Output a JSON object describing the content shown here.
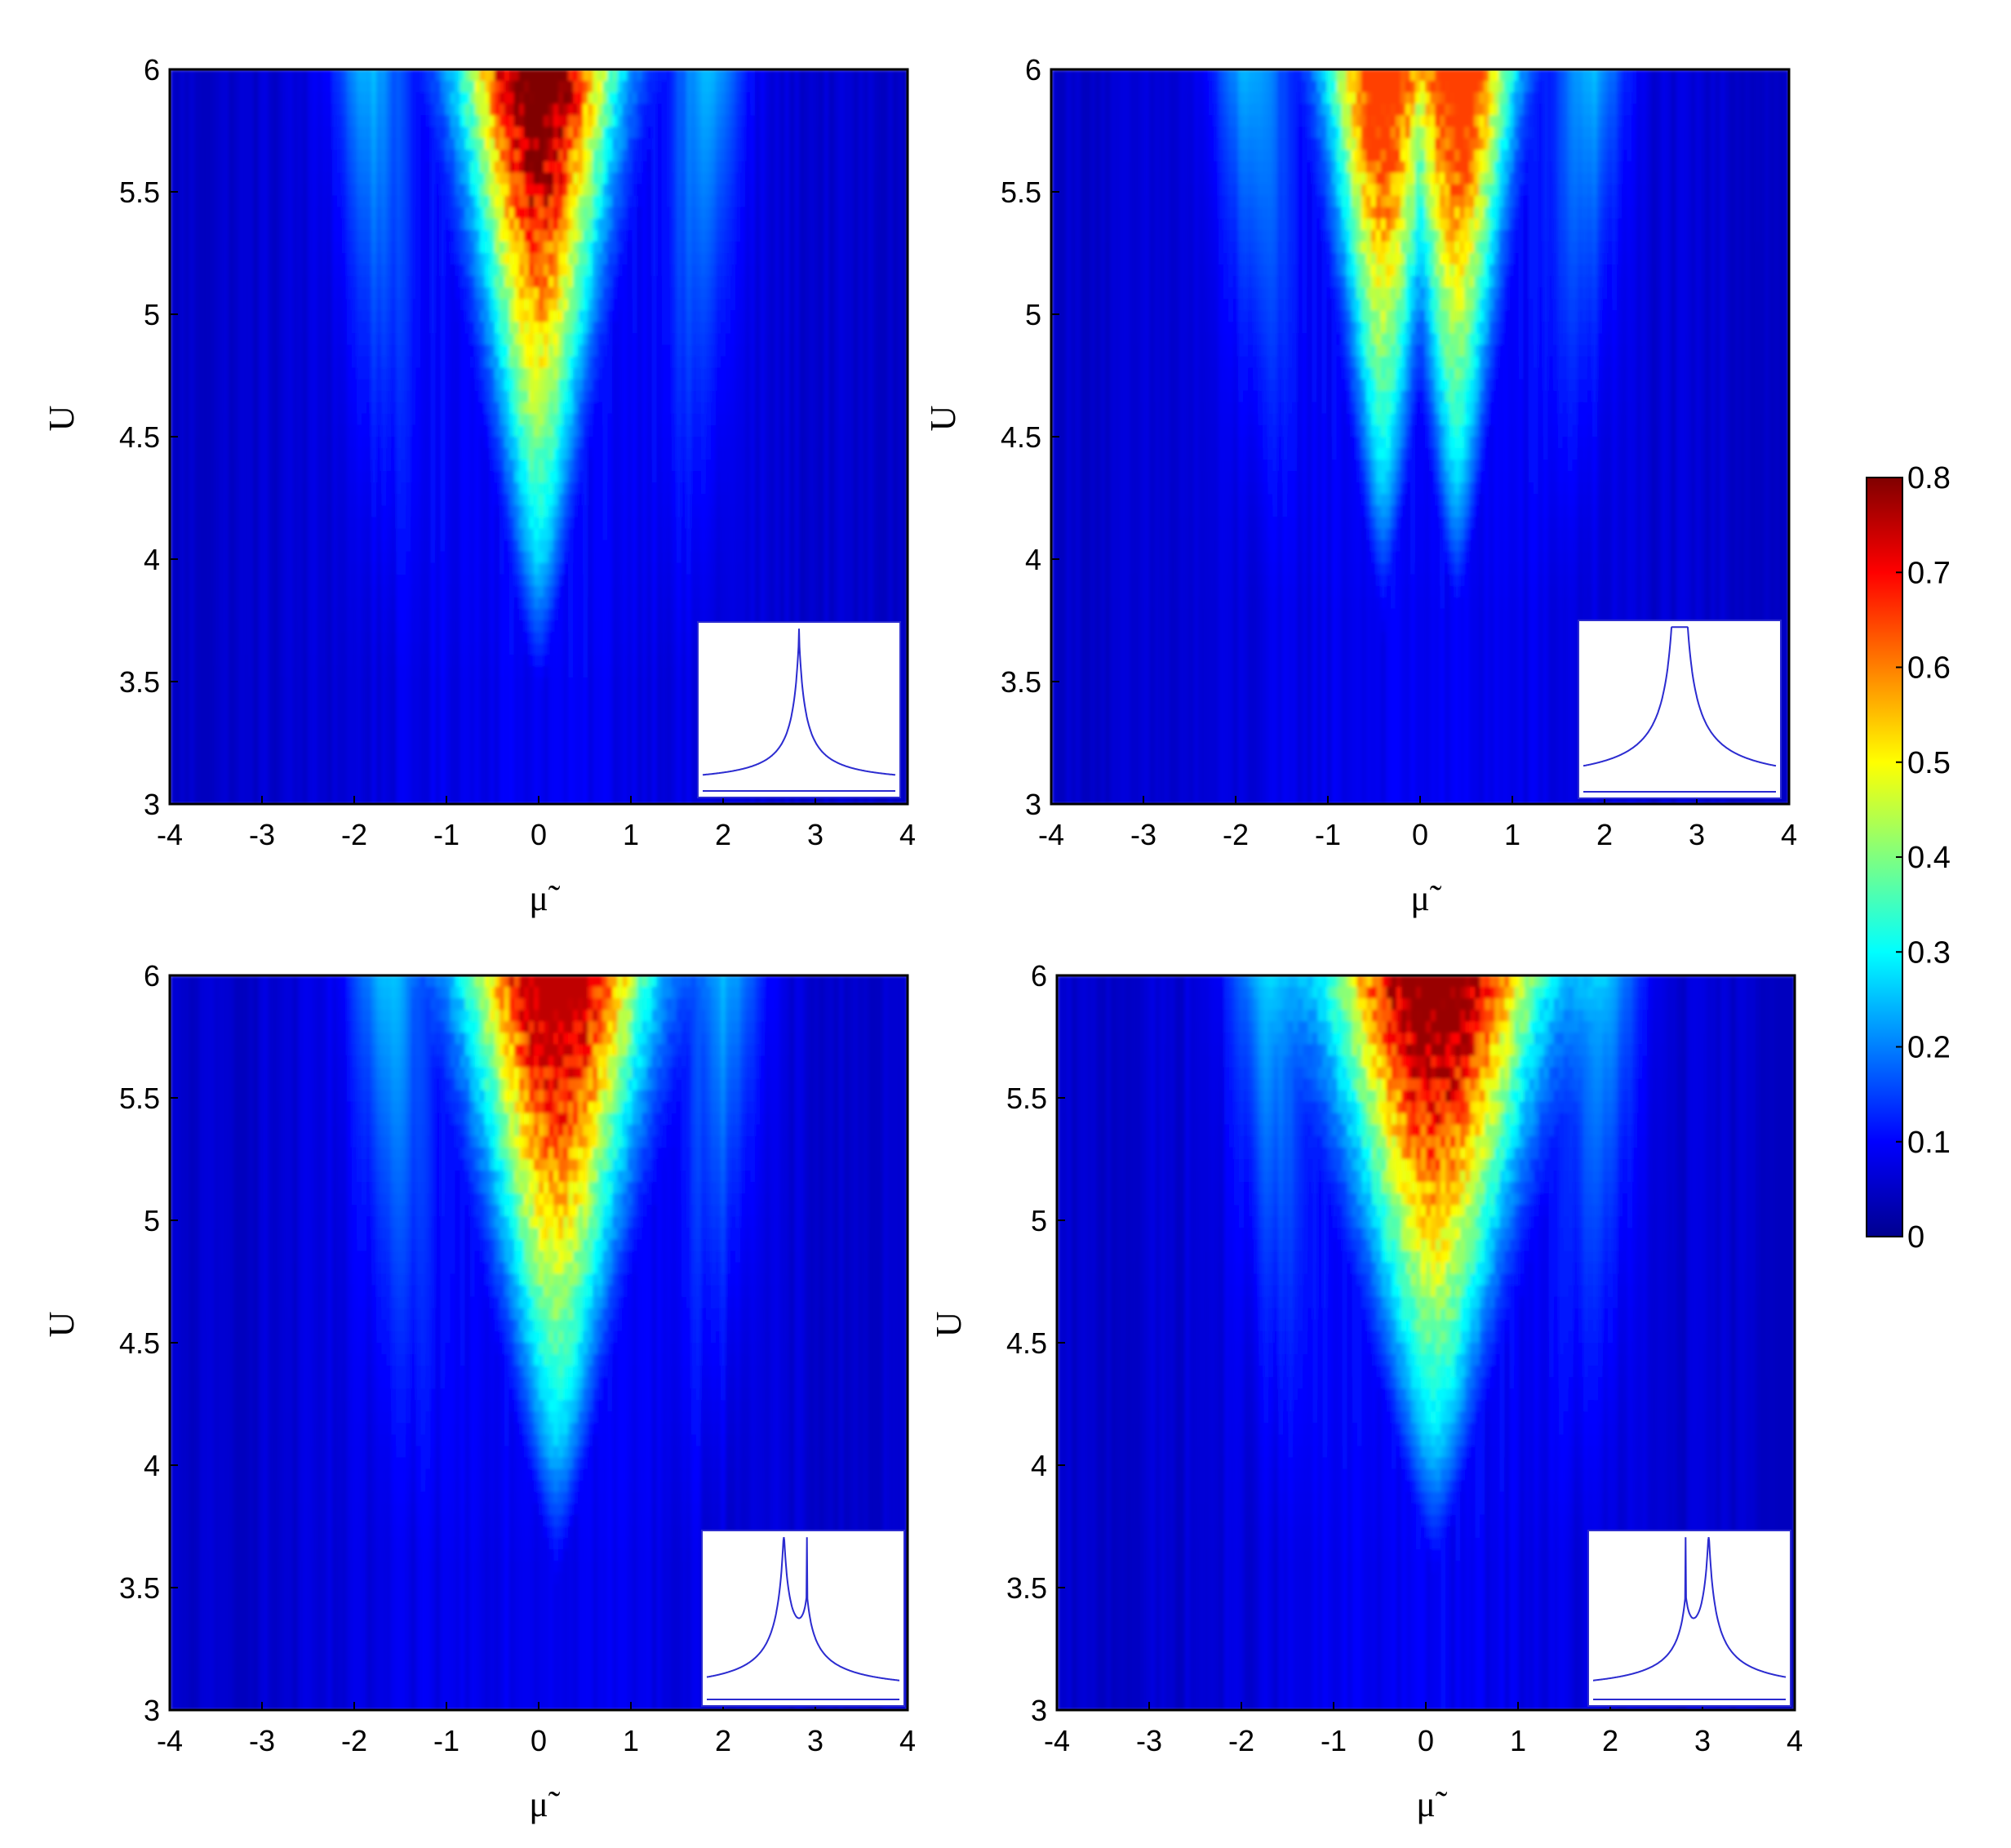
{
  "chart_data": [
    {
      "type": "heatmap",
      "panel": "top-left",
      "xlabel": "μ̃",
      "ylabel": "U",
      "xlim": [
        -4,
        4
      ],
      "ylim": [
        3,
        6
      ],
      "x_ticks": [
        "-4",
        "-3",
        "-2",
        "-1",
        "0",
        "1",
        "2",
        "3",
        "4"
      ],
      "y_ticks": [
        "3",
        "3.5",
        "4",
        "4.5",
        "5",
        "5.5",
        "6"
      ],
      "hot_region": {
        "center_mu": 0.0,
        "half_width_at_U6": 1.0,
        "base_U": 3.5,
        "peak_value": 0.8
      },
      "inset": {
        "peaks": [
          {
            "x": 0.5,
            "height": 1.0
          }
        ]
      }
    },
    {
      "type": "heatmap",
      "panel": "top-right",
      "xlabel": "μ̃",
      "ylabel": "U",
      "xlim": [
        -4,
        4
      ],
      "ylim": [
        3,
        6
      ],
      "x_ticks": [
        "-4",
        "-3",
        "-2",
        "-1",
        "0",
        "1",
        "2",
        "3",
        "4"
      ],
      "y_ticks": [
        "3",
        "3.5",
        "4",
        "4.5",
        "5",
        "5.5",
        "6"
      ],
      "hot_region": {
        "center_mu": 0.0,
        "half_width_at_U6": 1.0,
        "base_U": 3.8,
        "peak_value": 0.65,
        "split_centers": [
          -0.4,
          0.4
        ]
      },
      "inset": {
        "peaks": [
          {
            "x": 0.47,
            "height": 1.0
          },
          {
            "x": 0.53,
            "height": 1.0
          }
        ]
      }
    },
    {
      "type": "heatmap",
      "panel": "bottom-left",
      "xlabel": "μ̃",
      "ylabel": "U",
      "xlim": [
        -4,
        4
      ],
      "ylim": [
        3,
        6
      ],
      "x_ticks": [
        "-4",
        "-3",
        "-2",
        "-1",
        "0",
        "1",
        "2",
        "3",
        "4"
      ],
      "y_ticks": [
        "3",
        "3.5",
        "4",
        "4.5",
        "5",
        "5.5",
        "6"
      ],
      "hot_region": {
        "center_mu": 0.2,
        "half_width_at_U6": 1.2,
        "base_U": 3.6,
        "peak_value": 0.75
      },
      "inset": {
        "peaks": [
          {
            "x": 0.4,
            "height": 1.0
          },
          {
            "x": 0.52,
            "height": 0.45
          }
        ]
      }
    },
    {
      "type": "heatmap",
      "panel": "bottom-right",
      "xlabel": "μ̃",
      "ylabel": "U",
      "xlim": [
        -4,
        4
      ],
      "ylim": [
        3,
        6
      ],
      "x_ticks": [
        "-4",
        "-3",
        "-2",
        "-1",
        "0",
        "1",
        "2",
        "3",
        "4"
      ],
      "y_ticks": [
        "3",
        "3.5",
        "4",
        "4.5",
        "5",
        "5.5",
        "6"
      ],
      "hot_region": {
        "center_mu": 0.1,
        "half_width_at_U6": 1.4,
        "base_U": 3.6,
        "peak_value": 0.78
      },
      "inset": {
        "peaks": [
          {
            "x": 0.48,
            "height": 0.45
          },
          {
            "x": 0.6,
            "height": 1.0
          }
        ]
      }
    }
  ],
  "colorbar": {
    "colormap": "jet",
    "range": [
      0,
      0.8
    ],
    "ticks": [
      "0",
      "0.1",
      "0.2",
      "0.3",
      "0.4",
      "0.5",
      "0.6",
      "0.7",
      "0.8"
    ]
  }
}
